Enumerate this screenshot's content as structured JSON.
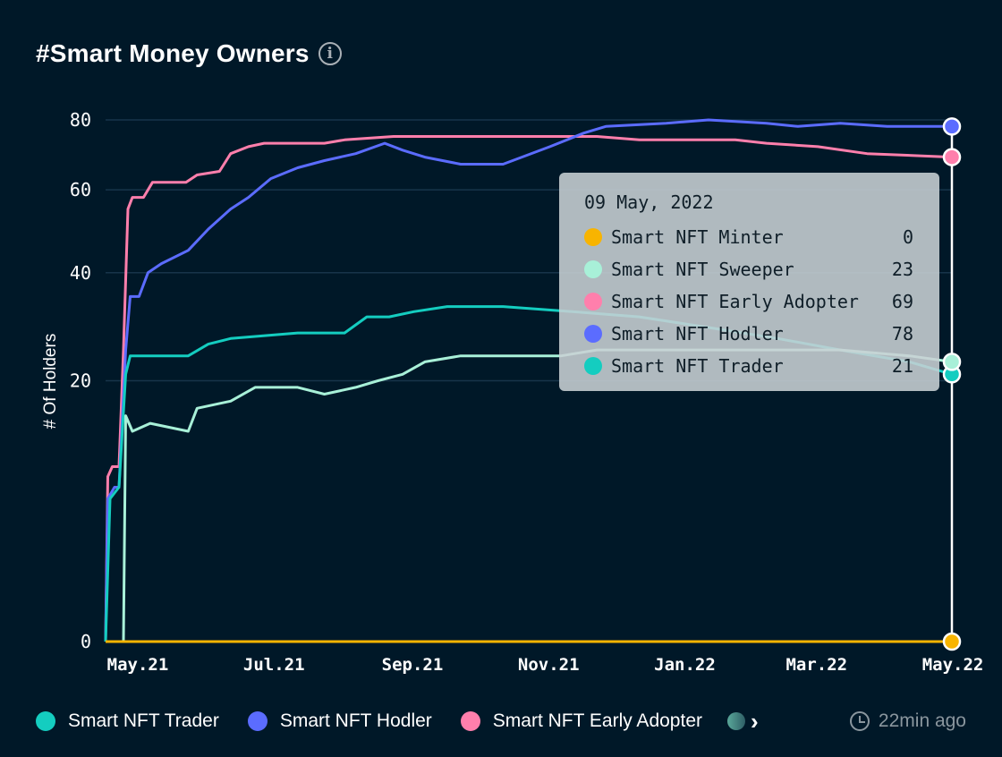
{
  "header": {
    "title": "#Smart Money Owners",
    "info_icon": "info-icon"
  },
  "chart_data": {
    "type": "line",
    "title": "#Smart Money Owners",
    "xlabel": "",
    "ylabel": "# Of Holders",
    "ylim": [
      0,
      80
    ],
    "y_scale": "sqrt",
    "y_ticks": [
      0,
      20,
      40,
      60,
      80
    ],
    "x_tick_labels": [
      "May.21",
      "Jul.21",
      "Sep.21",
      "Nov.21",
      "Jan.22",
      "Mar.22",
      "May.22"
    ],
    "x_ticks": [
      "2021-05-01",
      "2021-07-01",
      "2021-09-01",
      "2021-11-01",
      "2022-01-01",
      "2022-03-01",
      "2022-05-01"
    ],
    "grid": true,
    "legend_position": "bottom",
    "series": [
      {
        "name": "Smart NFT Early Adopter",
        "color": "#ff7fac",
        "points": [
          [
            "2021-04-25",
            0
          ],
          [
            "2021-04-26",
            8
          ],
          [
            "2021-04-28",
            9
          ],
          [
            "2021-05-01",
            9
          ],
          [
            "2021-05-03",
            25
          ],
          [
            "2021-05-05",
            55
          ],
          [
            "2021-05-07",
            58
          ],
          [
            "2021-05-12",
            58
          ],
          [
            "2021-05-16",
            62
          ],
          [
            "2021-05-31",
            62
          ],
          [
            "2021-06-05",
            64
          ],
          [
            "2021-06-15",
            65
          ],
          [
            "2021-06-20",
            70
          ],
          [
            "2021-06-28",
            72
          ],
          [
            "2021-07-05",
            73
          ],
          [
            "2021-08-01",
            73
          ],
          [
            "2021-08-10",
            74
          ],
          [
            "2021-09-01",
            75
          ],
          [
            "2021-12-01",
            75
          ],
          [
            "2021-12-20",
            74
          ],
          [
            "2022-02-01",
            74
          ],
          [
            "2022-02-15",
            73
          ],
          [
            "2022-03-10",
            72
          ],
          [
            "2022-04-01",
            70
          ],
          [
            "2022-05-09",
            69
          ]
        ]
      },
      {
        "name": "Smart NFT Hodler",
        "color": "#5b6cff",
        "points": [
          [
            "2021-04-25",
            0
          ],
          [
            "2021-04-26",
            6
          ],
          [
            "2021-04-29",
            7
          ],
          [
            "2021-05-01",
            7
          ],
          [
            "2021-05-04",
            25
          ],
          [
            "2021-05-06",
            35
          ],
          [
            "2021-05-10",
            35
          ],
          [
            "2021-05-14",
            40
          ],
          [
            "2021-05-20",
            42
          ],
          [
            "2021-06-01",
            45
          ],
          [
            "2021-06-10",
            50
          ],
          [
            "2021-06-20",
            55
          ],
          [
            "2021-06-28",
            58
          ],
          [
            "2021-07-08",
            63
          ],
          [
            "2021-07-20",
            66
          ],
          [
            "2021-08-01",
            68
          ],
          [
            "2021-08-15",
            70
          ],
          [
            "2021-08-28",
            73
          ],
          [
            "2021-09-05",
            71
          ],
          [
            "2021-09-15",
            69
          ],
          [
            "2021-10-01",
            67
          ],
          [
            "2021-10-20",
            67
          ],
          [
            "2021-11-10",
            72
          ],
          [
            "2021-11-25",
            76
          ],
          [
            "2021-12-05",
            78
          ],
          [
            "2022-01-01",
            79
          ],
          [
            "2022-01-20",
            80
          ],
          [
            "2022-02-15",
            79
          ],
          [
            "2022-03-01",
            78
          ],
          [
            "2022-03-20",
            79
          ],
          [
            "2022-04-10",
            78
          ],
          [
            "2022-05-01",
            78
          ],
          [
            "2022-05-09",
            78
          ]
        ]
      },
      {
        "name": "Smart NFT Trader",
        "color": "#14cdc0",
        "points": [
          [
            "2021-04-25",
            0
          ],
          [
            "2021-04-27",
            6
          ],
          [
            "2021-05-01",
            7
          ],
          [
            "2021-05-04",
            21
          ],
          [
            "2021-05-06",
            24
          ],
          [
            "2021-05-15",
            24
          ],
          [
            "2021-06-01",
            24
          ],
          [
            "2021-06-10",
            26
          ],
          [
            "2021-06-20",
            27
          ],
          [
            "2021-07-20",
            28
          ],
          [
            "2021-08-10",
            28
          ],
          [
            "2021-08-20",
            31
          ],
          [
            "2021-08-30",
            31
          ],
          [
            "2021-09-10",
            32
          ],
          [
            "2021-09-25",
            33
          ],
          [
            "2021-10-20",
            33
          ],
          [
            "2021-11-20",
            32
          ],
          [
            "2021-12-20",
            31
          ],
          [
            "2022-01-20",
            29
          ],
          [
            "2022-02-20",
            27
          ],
          [
            "2022-03-20",
            25
          ],
          [
            "2022-04-20",
            23
          ],
          [
            "2022-05-09",
            21
          ]
        ]
      },
      {
        "name": "Smart NFT Sweeper",
        "color": "#a8f0d8",
        "points": [
          [
            "2021-04-25",
            0
          ],
          [
            "2021-05-03",
            0
          ],
          [
            "2021-05-04",
            15
          ],
          [
            "2021-05-07",
            13
          ],
          [
            "2021-05-15",
            14
          ],
          [
            "2021-06-01",
            13
          ],
          [
            "2021-06-05",
            16
          ],
          [
            "2021-06-20",
            17
          ],
          [
            "2021-07-01",
            19
          ],
          [
            "2021-07-20",
            19
          ],
          [
            "2021-08-01",
            18
          ],
          [
            "2021-08-15",
            19
          ],
          [
            "2021-08-25",
            20
          ],
          [
            "2021-09-05",
            21
          ],
          [
            "2021-09-15",
            23
          ],
          [
            "2021-10-01",
            24
          ],
          [
            "2021-10-20",
            24
          ],
          [
            "2021-11-15",
            24
          ],
          [
            "2021-12-01",
            25
          ],
          [
            "2021-12-20",
            25
          ],
          [
            "2022-01-20",
            25
          ],
          [
            "2022-02-20",
            25
          ],
          [
            "2022-03-20",
            25
          ],
          [
            "2022-04-20",
            24
          ],
          [
            "2022-05-09",
            23
          ]
        ]
      },
      {
        "name": "Smart NFT Minter",
        "color": "#f8b400",
        "points": [
          [
            "2021-04-25",
            0
          ],
          [
            "2022-05-09",
            0
          ]
        ]
      }
    ]
  },
  "tooltip": {
    "date": "09 May, 2022",
    "rows": [
      {
        "name": "Smart NFT Minter",
        "value": "0",
        "color": "#f8b400"
      },
      {
        "name": "Smart NFT Sweeper",
        "value": "23",
        "color": "#a8f0d8"
      },
      {
        "name": "Smart NFT Early Adopter",
        "value": "69",
        "color": "#ff7fac"
      },
      {
        "name": "Smart NFT Hodler",
        "value": "78",
        "color": "#5b6cff"
      },
      {
        "name": "Smart NFT Trader",
        "value": "21",
        "color": "#14cdc0"
      }
    ]
  },
  "legend": {
    "items": [
      {
        "name": "Smart NFT Trader",
        "color": "#14cdc0"
      },
      {
        "name": "Smart NFT Hodler",
        "color": "#5b6cff"
      },
      {
        "name": "Smart NFT Early Adopter",
        "color": "#ff7fac"
      }
    ],
    "more_icon": "chevron-right-icon"
  },
  "footer": {
    "updated": "22min ago",
    "updated_icon": "history-icon"
  }
}
